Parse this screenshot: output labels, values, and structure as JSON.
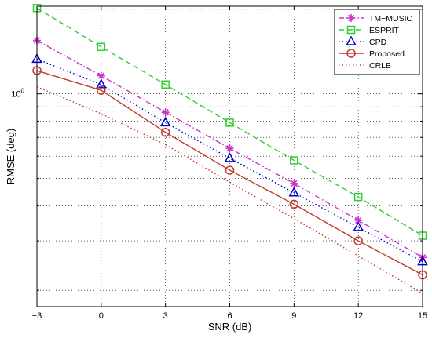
{
  "chart_data": {
    "type": "line",
    "xlabel": "SNR (dB)",
    "ylabel": "RMSE (deg)",
    "x": [
      -3,
      0,
      3,
      6,
      9,
      12,
      15
    ],
    "xlim": [
      -3,
      15
    ],
    "ylim": [
      0.175,
      2.05
    ],
    "yscale": "log",
    "y_tick_labels": [
      {
        "value": 1,
        "base": "10",
        "exp": "0"
      }
    ],
    "grid": true,
    "grid_style": "dotted",
    "legend_position": "top-right",
    "series": [
      {
        "name": "TM−MUSIC",
        "values": [
          1.55,
          1.16,
          0.86,
          0.64,
          0.48,
          0.355,
          0.262
        ],
        "color": "#cc33cc",
        "line": "dashdot",
        "marker": "asterisk"
      },
      {
        "name": "ESPRIT",
        "values": [
          2.02,
          1.47,
          1.08,
          0.79,
          0.58,
          0.43,
          0.313
        ],
        "color": "#33cc33",
        "line": "dashed",
        "marker": "square"
      },
      {
        "name": "CPD",
        "values": [
          1.33,
          1.08,
          0.79,
          0.59,
          0.445,
          0.335,
          0.253
        ],
        "color": "#0000cc",
        "line": "dotted",
        "marker": "triangle"
      },
      {
        "name": "Proposed",
        "values": [
          1.21,
          1.03,
          0.73,
          0.535,
          0.405,
          0.3,
          0.227
        ],
        "color": "#c0392b",
        "line": "solid",
        "marker": "circle"
      },
      {
        "name": "CRLB",
        "values": [
          1.06,
          0.85,
          0.66,
          0.485,
          0.36,
          0.265,
          0.195
        ],
        "color": "#c0392b",
        "line": "dotted",
        "marker": "none"
      }
    ]
  }
}
